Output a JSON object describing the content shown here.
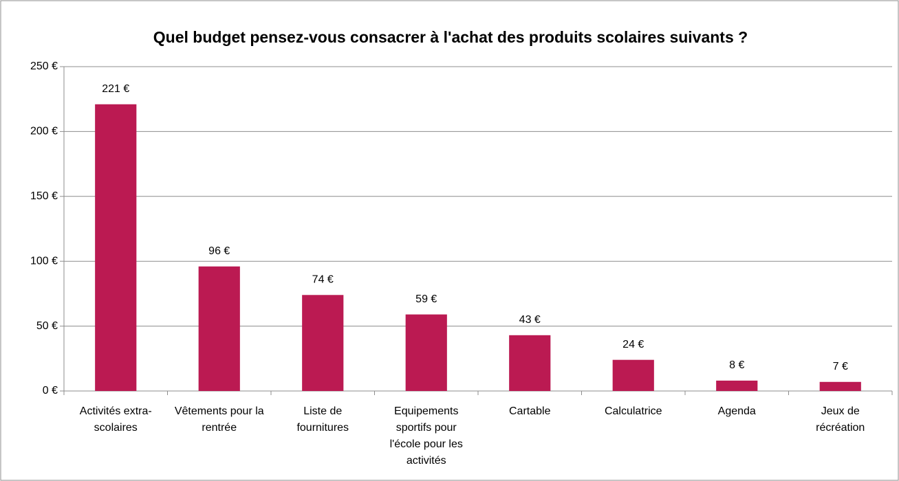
{
  "chart_data": {
    "type": "bar",
    "title": "Quel budget pensez-vous consacrer à l'achat des produits scolaires suivants ?",
    "categories": [
      "Activités extra-scolaires",
      "Vêtements pour la rentrée",
      "Liste de fournitures",
      "Equipements sportifs pour l'école pour les activités",
      "Cartable",
      "Calculatrice",
      "Agenda",
      "Jeux de récréation"
    ],
    "values": [
      221,
      96,
      74,
      59,
      43,
      24,
      8,
      7
    ],
    "value_labels": [
      "221 €",
      "96 €",
      "74 €",
      "59 €",
      "43 €",
      "24 €",
      "8 €",
      "7 €"
    ],
    "color": "#bb1a52",
    "ylim": [
      0,
      250
    ],
    "yticks": [
      {
        "value": 0,
        "label": "0 €"
      },
      {
        "value": 50,
        "label": "50 €"
      },
      {
        "value": 100,
        "label": "100 €"
      },
      {
        "value": 150,
        "label": "150 €"
      },
      {
        "value": 200,
        "label": "200 €"
      },
      {
        "value": 250,
        "label": "250 €"
      }
    ],
    "grid": true
  }
}
